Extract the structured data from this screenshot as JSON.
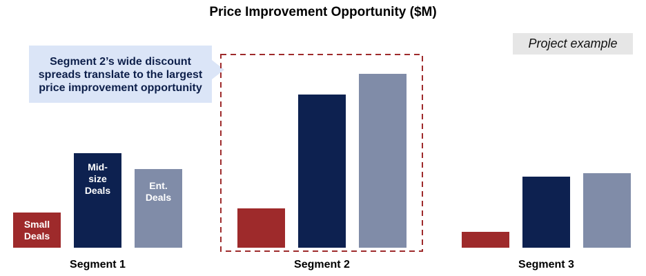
{
  "chart_data": {
    "type": "bar",
    "title": "Price Improvement Opportunity ($M)",
    "categories": [
      "Segment 1",
      "Segment 2",
      "Segment 3"
    ],
    "series": [
      {
        "name": "Small Deals",
        "values": [
          51,
          57,
          23
        ],
        "color": "#9e2a2b"
      },
      {
        "name": "Mid-size Deals",
        "values": [
          137,
          222,
          103
        ],
        "color": "#0d2150"
      },
      {
        "name": "Ent. Deals",
        "values": [
          114,
          252,
          108
        ],
        "color": "#808ca8"
      }
    ],
    "bar_labels": {
      "small": [
        "Small",
        "Deals"
      ],
      "mid": [
        "Mid-",
        "size",
        "Deals"
      ],
      "ent": [
        "Ent.",
        "Deals"
      ]
    },
    "ylim": [
      0,
      300
    ],
    "grid": false,
    "highlight_category": "Segment 2",
    "highlight_color": "#9e2a2b",
    "callout": "Segment 2’s wide discount spreads translate to the largest price improvement opportunity",
    "badge": "Project example"
  }
}
